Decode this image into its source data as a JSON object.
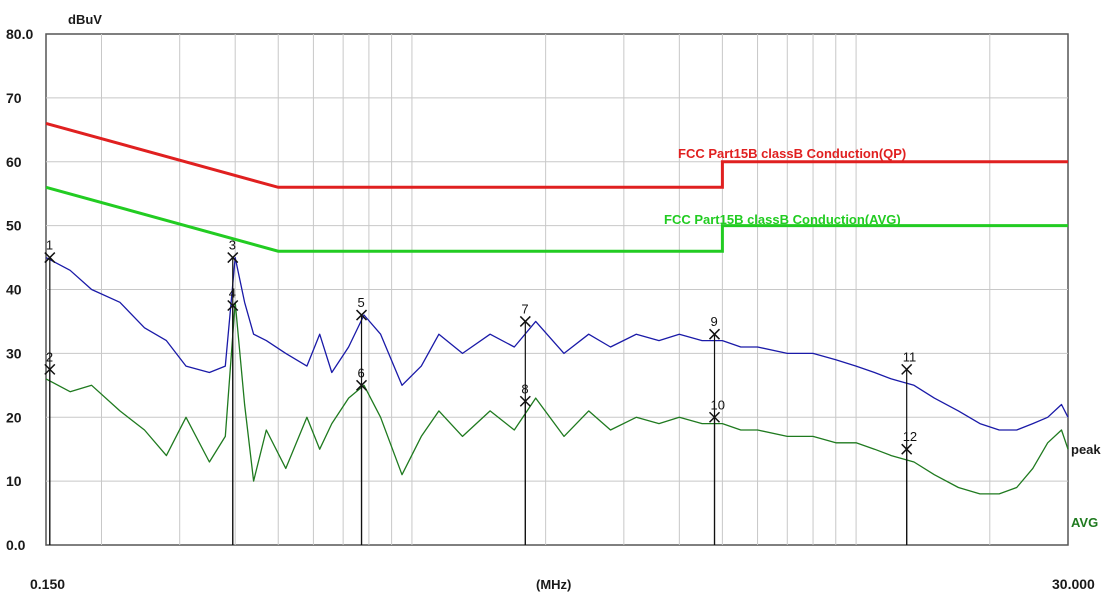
{
  "chart_data": {
    "type": "line",
    "title": "",
    "xlabel": "(MHz)",
    "ylabel": "dBuV",
    "xscale": "log",
    "xlim": [
      0.15,
      30.0
    ],
    "ylim": [
      0,
      80
    ],
    "x_tick_labels": {
      "start": "0.150",
      "end": "30.000"
    },
    "y_tick_labels": [
      "80.0",
      "70",
      "60",
      "50",
      "40",
      "30",
      "20",
      "10",
      "0.0"
    ],
    "y_ticks": [
      80,
      70,
      60,
      50,
      40,
      30,
      20,
      10,
      0
    ],
    "grid": true,
    "limit_lines": [
      {
        "name": "FCC Part15B classB Conduction(QP)",
        "color": "#e02020",
        "x": [
          0.15,
          0.5,
          0.5,
          5.0,
          5.0,
          30.0
        ],
        "y": [
          66,
          56,
          56,
          56,
          60,
          60
        ]
      },
      {
        "name": "FCC Part15B classB Conduction(AVG)",
        "color": "#22cc22",
        "x": [
          0.15,
          0.5,
          0.5,
          5.0,
          5.0,
          30.0
        ],
        "y": [
          56,
          46,
          46,
          46,
          50,
          50
        ]
      }
    ],
    "series": [
      {
        "name": "peak",
        "color": "#1a1aa8",
        "x": [
          0.15,
          0.17,
          0.19,
          0.22,
          0.25,
          0.28,
          0.31,
          0.35,
          0.38,
          0.4,
          0.42,
          0.44,
          0.47,
          0.52,
          0.58,
          0.62,
          0.66,
          0.72,
          0.78,
          0.85,
          0.95,
          1.05,
          1.15,
          1.3,
          1.5,
          1.7,
          1.9,
          2.2,
          2.5,
          2.8,
          3.2,
          3.6,
          4.0,
          4.5,
          5.0,
          5.5,
          6.0,
          7.0,
          8.0,
          9.0,
          10.0,
          11.0,
          12.0,
          13.5,
          15.0,
          17.0,
          19.0,
          21.0,
          23.0,
          25.0,
          27.0,
          29.0,
          30.0
        ],
        "y": [
          45,
          43,
          40,
          38,
          34,
          32,
          28,
          27,
          28,
          45,
          38,
          33,
          32,
          30,
          28,
          33,
          27,
          31,
          36,
          33,
          25,
          28,
          33,
          30,
          33,
          31,
          35,
          30,
          33,
          31,
          33,
          32,
          33,
          32,
          32,
          31,
          31,
          30,
          30,
          29,
          28,
          27,
          26,
          25,
          23,
          21,
          19,
          18,
          18,
          19,
          20,
          22,
          20
        ]
      },
      {
        "name": "AVG",
        "color": "#1f7a1f",
        "x": [
          0.15,
          0.17,
          0.19,
          0.22,
          0.25,
          0.28,
          0.31,
          0.35,
          0.38,
          0.4,
          0.42,
          0.44,
          0.47,
          0.52,
          0.58,
          0.62,
          0.66,
          0.72,
          0.78,
          0.85,
          0.95,
          1.05,
          1.15,
          1.3,
          1.5,
          1.7,
          1.9,
          2.2,
          2.5,
          2.8,
          3.2,
          3.6,
          4.0,
          4.5,
          5.0,
          5.5,
          6.0,
          7.0,
          8.0,
          9.0,
          10.0,
          11.0,
          12.0,
          13.5,
          15.0,
          17.0,
          19.0,
          21.0,
          23.0,
          25.0,
          27.0,
          29.0,
          30.0
        ],
        "y": [
          26,
          24,
          25,
          21,
          18,
          14,
          20,
          13,
          17,
          38,
          22,
          10,
          18,
          12,
          20,
          15,
          19,
          23,
          25,
          20,
          11,
          17,
          21,
          17,
          21,
          18,
          23,
          17,
          21,
          18,
          20,
          19,
          20,
          19,
          19,
          18,
          18,
          17,
          17,
          16,
          16,
          15,
          14,
          13,
          11,
          9,
          8,
          8,
          9,
          12,
          16,
          18,
          15
        ]
      }
    ],
    "markers": [
      {
        "label": "1",
        "x": 0.153,
        "y": 45
      },
      {
        "label": "2",
        "x": 0.153,
        "y": 27.5
      },
      {
        "label": "3",
        "x": 0.395,
        "y": 45
      },
      {
        "label": "4",
        "x": 0.395,
        "y": 37.5
      },
      {
        "label": "5",
        "x": 0.77,
        "y": 36
      },
      {
        "label": "6",
        "x": 0.77,
        "y": 25
      },
      {
        "label": "7",
        "x": 1.8,
        "y": 35
      },
      {
        "label": "8",
        "x": 1.8,
        "y": 22.5
      },
      {
        "label": "9",
        "x": 4.8,
        "y": 33
      },
      {
        "label": "10",
        "x": 4.8,
        "y": 20
      },
      {
        "label": "11",
        "x": 13.0,
        "y": 27.5
      },
      {
        "label": "12",
        "x": 13.0,
        "y": 15
      }
    ]
  }
}
